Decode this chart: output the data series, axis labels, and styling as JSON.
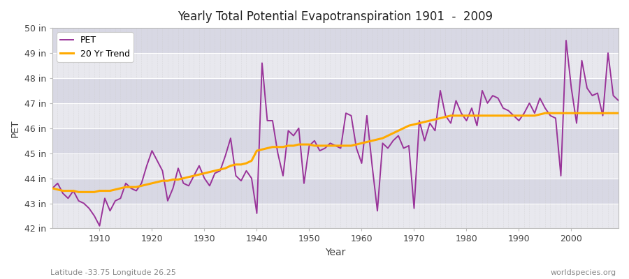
{
  "title": "Yearly Total Potential Evapotranspiration 1901  -  2009",
  "ylabel": "PET",
  "xlabel": "Year",
  "subtitle_left": "Latitude -33.75 Longitude 26.25",
  "subtitle_right": "worldspecies.org",
  "ylim": [
    42,
    50
  ],
  "xlim": [
    1901,
    2009
  ],
  "yticks": [
    42,
    43,
    44,
    45,
    46,
    47,
    48,
    49,
    50
  ],
  "xticks": [
    1910,
    1920,
    1930,
    1940,
    1950,
    1960,
    1970,
    1980,
    1990,
    2000
  ],
  "pet_color": "#993399",
  "trend_color": "#ffaa00",
  "bg_color": "#ffffff",
  "plot_bg_color": "#e8e8e8",
  "band_color_light": "#e0e0e8",
  "band_color_dark": "#d8d8e0",
  "grid_color": "#ffffff",
  "pet_linewidth": 1.4,
  "trend_linewidth": 2.2,
  "years": [
    1901,
    1902,
    1903,
    1904,
    1905,
    1906,
    1907,
    1908,
    1909,
    1910,
    1911,
    1912,
    1913,
    1914,
    1915,
    1916,
    1917,
    1918,
    1919,
    1920,
    1921,
    1922,
    1923,
    1924,
    1925,
    1926,
    1927,
    1928,
    1929,
    1930,
    1931,
    1932,
    1933,
    1934,
    1935,
    1936,
    1937,
    1938,
    1939,
    1940,
    1941,
    1942,
    1943,
    1944,
    1945,
    1946,
    1947,
    1948,
    1949,
    1950,
    1951,
    1952,
    1953,
    1954,
    1955,
    1956,
    1957,
    1958,
    1959,
    1960,
    1961,
    1962,
    1963,
    1964,
    1965,
    1966,
    1967,
    1968,
    1969,
    1970,
    1971,
    1972,
    1973,
    1974,
    1975,
    1976,
    1977,
    1978,
    1979,
    1980,
    1981,
    1982,
    1983,
    1984,
    1985,
    1986,
    1987,
    1988,
    1989,
    1990,
    1991,
    1992,
    1993,
    1994,
    1995,
    1996,
    1997,
    1998,
    1999,
    2000,
    2001,
    2002,
    2003,
    2004,
    2005,
    2006,
    2007,
    2008,
    2009
  ],
  "pet_values": [
    43.6,
    43.8,
    43.4,
    43.2,
    43.5,
    43.1,
    43.0,
    42.8,
    42.5,
    42.1,
    43.2,
    42.7,
    43.1,
    43.2,
    43.8,
    43.6,
    43.5,
    43.8,
    44.5,
    45.1,
    44.7,
    44.3,
    43.1,
    43.6,
    44.4,
    43.8,
    43.7,
    44.1,
    44.5,
    44.0,
    43.7,
    44.2,
    44.3,
    44.9,
    45.6,
    44.1,
    43.9,
    44.3,
    44.0,
    42.6,
    48.6,
    46.3,
    46.3,
    45.0,
    44.1,
    45.9,
    45.7,
    46.0,
    43.8,
    45.3,
    45.5,
    45.1,
    45.2,
    45.4,
    45.3,
    45.2,
    46.6,
    46.5,
    45.2,
    44.6,
    46.5,
    44.5,
    42.7,
    45.4,
    45.2,
    45.5,
    45.7,
    45.2,
    45.3,
    42.8,
    46.3,
    45.5,
    46.2,
    45.9,
    47.5,
    46.5,
    46.2,
    47.1,
    46.6,
    46.3,
    46.8,
    46.1,
    47.5,
    47.0,
    47.3,
    47.2,
    46.8,
    46.7,
    46.5,
    46.3,
    46.6,
    47.0,
    46.6,
    47.2,
    46.8,
    46.5,
    46.4,
    44.1,
    49.5,
    47.6,
    46.2,
    48.7,
    47.6,
    47.3,
    47.4,
    46.5,
    49.0,
    47.3,
    47.1
  ],
  "trend_values": [
    43.6,
    43.55,
    43.5,
    43.5,
    43.5,
    43.45,
    43.45,
    43.45,
    43.45,
    43.5,
    43.5,
    43.5,
    43.55,
    43.6,
    43.65,
    43.65,
    43.65,
    43.7,
    43.75,
    43.8,
    43.85,
    43.9,
    43.9,
    43.95,
    43.95,
    44.0,
    44.05,
    44.1,
    44.15,
    44.2,
    44.25,
    44.3,
    44.35,
    44.4,
    44.5,
    44.55,
    44.55,
    44.6,
    44.7,
    45.1,
    45.15,
    45.2,
    45.25,
    45.25,
    45.25,
    45.3,
    45.3,
    45.35,
    45.35,
    45.35,
    45.3,
    45.3,
    45.3,
    45.3,
    45.3,
    45.3,
    45.3,
    45.3,
    45.35,
    45.4,
    45.45,
    45.5,
    45.55,
    45.6,
    45.7,
    45.8,
    45.9,
    46.0,
    46.1,
    46.15,
    46.2,
    46.25,
    46.3,
    46.35,
    46.4,
    46.45,
    46.5,
    46.5,
    46.5,
    46.5,
    46.5,
    46.5,
    46.5,
    46.5,
    46.5,
    46.5,
    46.5,
    46.5,
    46.5,
    46.5,
    46.5,
    46.5,
    46.5,
    46.55,
    46.6,
    46.6,
    46.6,
    46.6,
    46.6,
    46.6,
    46.6,
    46.6,
    46.6,
    46.6,
    46.6,
    46.6,
    46.6,
    46.6,
    46.6
  ]
}
